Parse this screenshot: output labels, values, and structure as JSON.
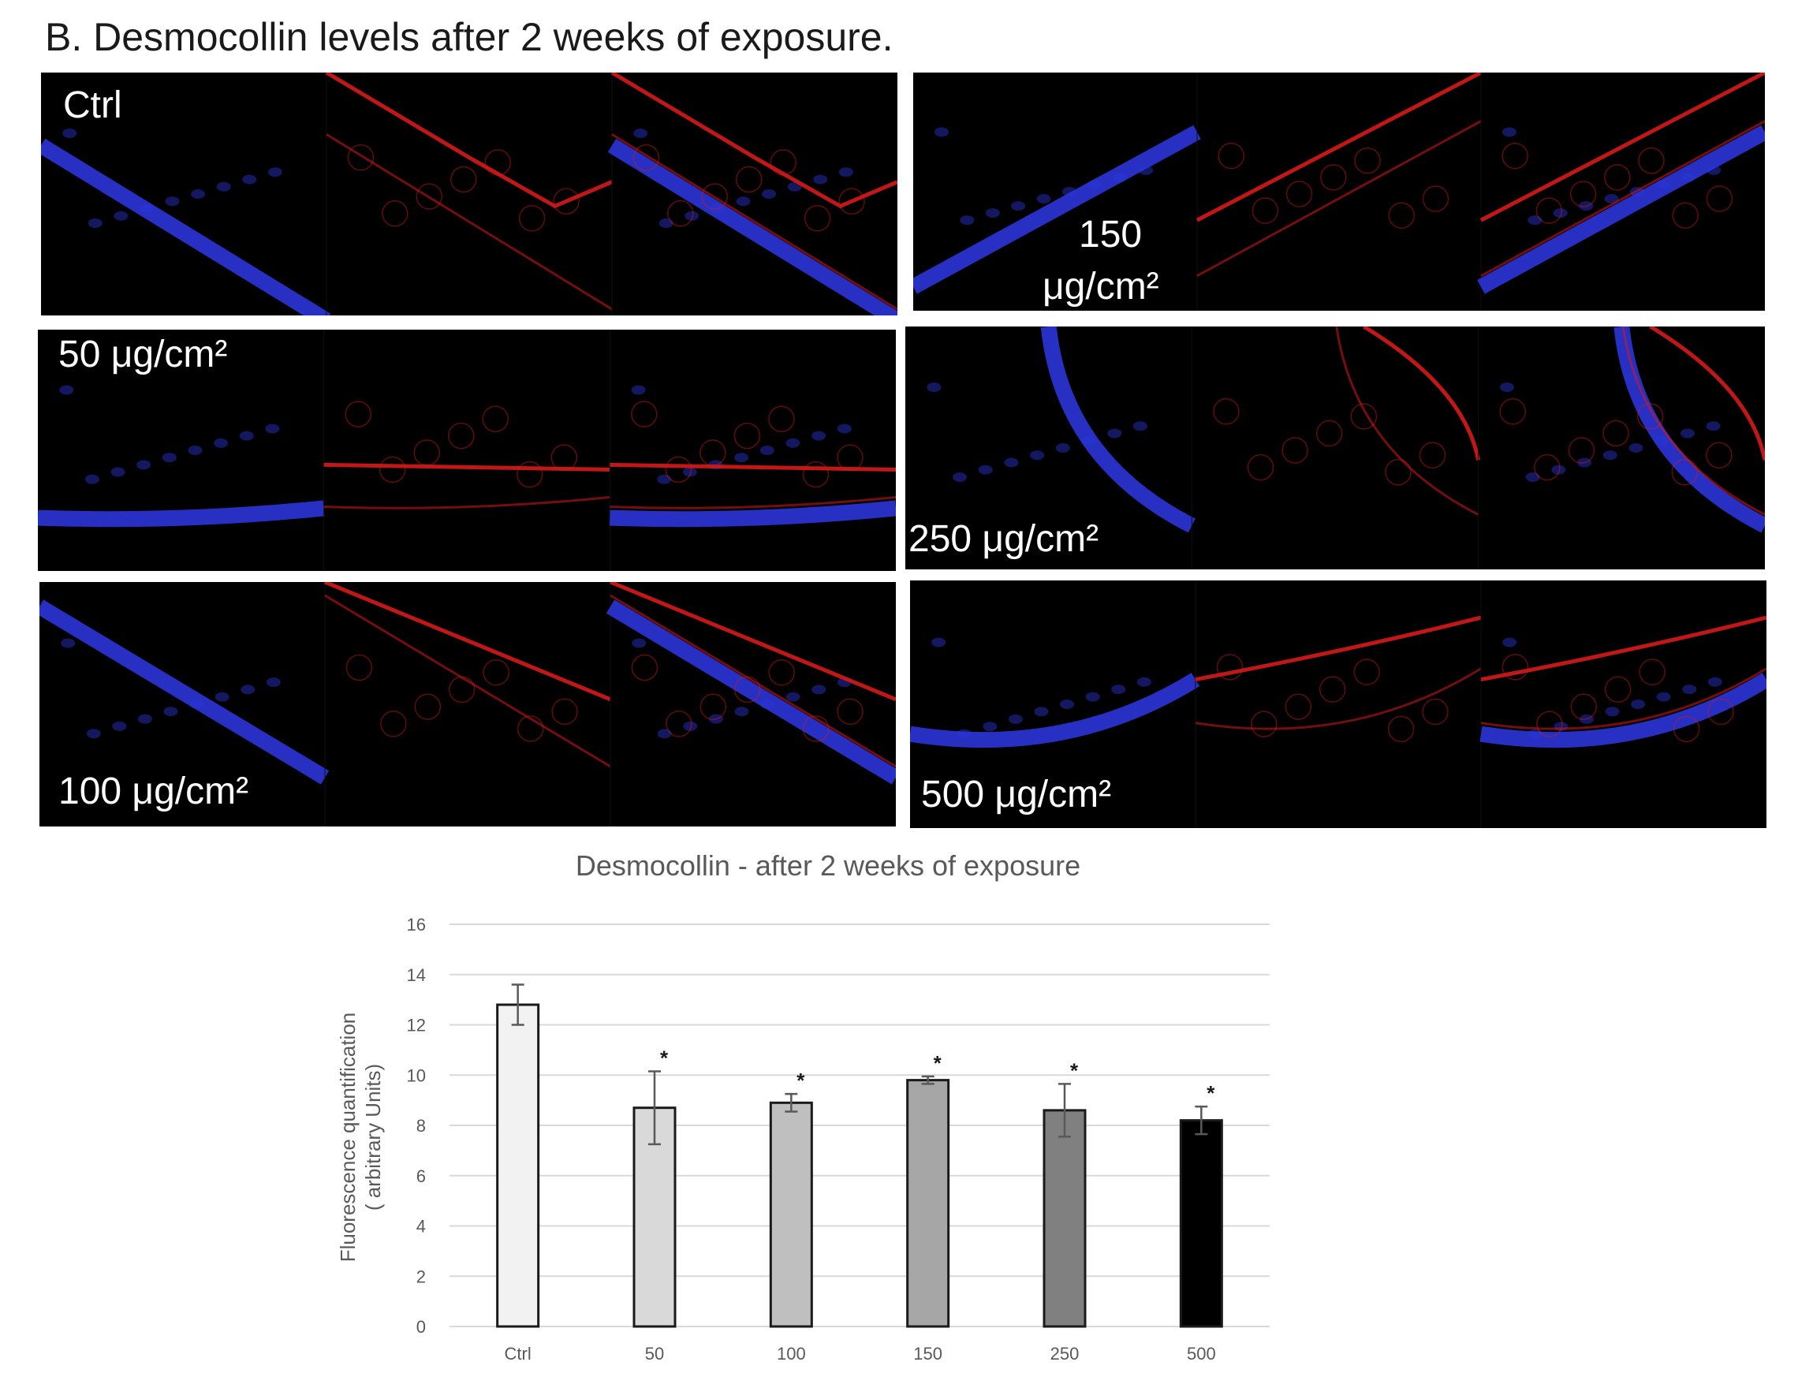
{
  "figure_title": "B. Desmocollin levels after 2 weeks of exposure.",
  "panel_labels": {
    "ctrl": "Ctrl",
    "d150_line1": "150",
    "d150_line2": "μg/cm²",
    "d50": "50 μg/cm²",
    "d250": "250 μg/cm²",
    "d100": "100 μg/cm²",
    "d500": "500 μg/cm²"
  },
  "colors": {
    "nuclear_stain": "#2b35d8",
    "membrane_stain": "#d61a1a",
    "bar_fills": [
      "#f2f2f2",
      "#d9d9d9",
      "#bfbfbf",
      "#a6a6a6",
      "#808080",
      "#000000"
    ]
  },
  "chart_data": {
    "type": "bar",
    "title": "Desmocollin - after 2 weeks of exposure",
    "xlabel": "",
    "ylabel_lines": [
      "Fluorescence quantification",
      "( arbitrary Units)"
    ],
    "categories": [
      "Ctrl",
      "50",
      "100",
      "150",
      "250",
      "500"
    ],
    "values": [
      12.8,
      8.7,
      8.9,
      9.8,
      8.6,
      8.2
    ],
    "error": [
      0.8,
      1.45,
      0.35,
      0.15,
      1.05,
      0.55
    ],
    "significance": [
      "",
      "*",
      "*",
      "*",
      "*",
      "*"
    ],
    "ylim": [
      0,
      16
    ],
    "yticks": [
      "0",
      "2",
      "4",
      "6",
      "8",
      "10",
      "12",
      "14",
      "16"
    ],
    "grid": true
  }
}
